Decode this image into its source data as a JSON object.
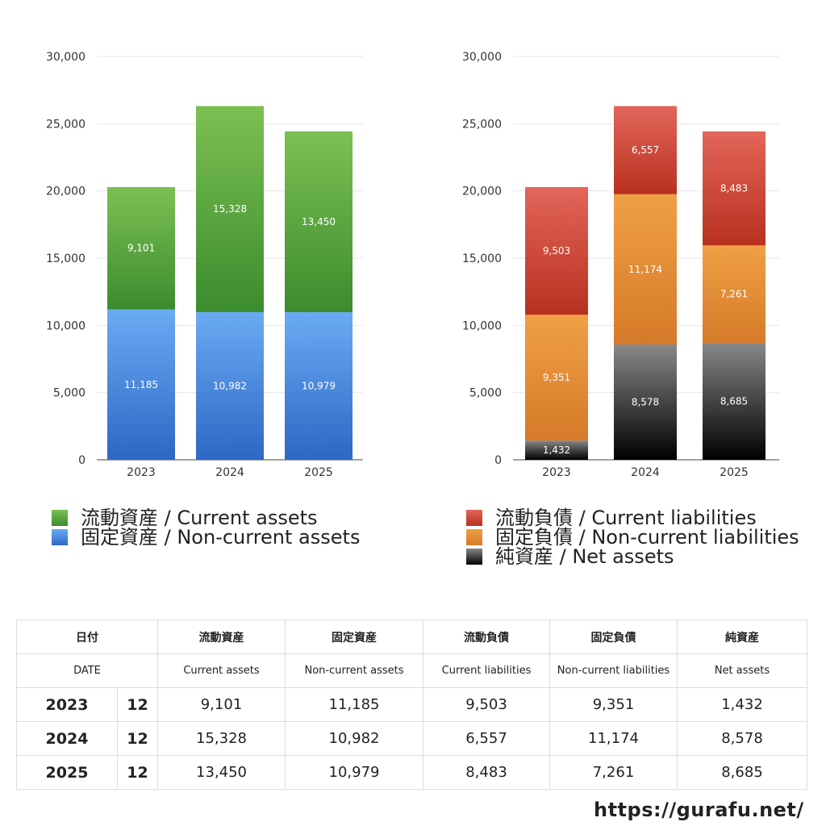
{
  "chart_data": [
    {
      "type": "bar",
      "stacked": true,
      "categories": [
        "2023",
        "2024",
        "2025"
      ],
      "ylim": [
        0,
        30000
      ],
      "yticks": [
        "0",
        "5,000",
        "10,000",
        "15,000",
        "20,000",
        "25,000",
        "30,000"
      ],
      "grid": true,
      "series": [
        {
          "name": "固定資産 / Non-current assets",
          "values": [
            11185,
            10982,
            10979
          ],
          "labels": [
            "11,185",
            "10,982",
            "10,979"
          ],
          "color_top": "#6aabf4",
          "color_bottom": "#2e67c4"
        },
        {
          "name": "流動資産 / Current assets",
          "values": [
            9101,
            15328,
            13450
          ],
          "labels": [
            "9,101",
            "15,328",
            "13,450"
          ],
          "color_top": "#7cc052",
          "color_bottom": "#3b8c2e"
        }
      ]
    },
    {
      "type": "bar",
      "stacked": true,
      "categories": [
        "2023",
        "2024",
        "2025"
      ],
      "ylim": [
        0,
        30000
      ],
      "yticks": [
        "0",
        "5,000",
        "10,000",
        "15,000",
        "20,000",
        "25,000",
        "30,000"
      ],
      "grid": true,
      "series": [
        {
          "name": "純資産 / Net assets",
          "values": [
            1432,
            8578,
            8685
          ],
          "labels": [
            "1,432",
            "8,578",
            "8,685"
          ],
          "color_top": "#888888",
          "color_bottom": "#000000"
        },
        {
          "name": "固定負債 / Non-current liabilities",
          "values": [
            9351,
            11174,
            7261
          ],
          "labels": [
            "9,351",
            "11,174",
            "7,261"
          ],
          "color_top": "#f0a045",
          "color_bottom": "#d57a29"
        },
        {
          "name": "流動負債 / Current liabilities",
          "values": [
            9503,
            6557,
            8483
          ],
          "labels": [
            "9,503",
            "6,557",
            "8,483"
          ],
          "color_top": "#e2665a",
          "color_bottom": "#b9301f"
        }
      ]
    }
  ],
  "legend_left": [
    "流動資産 / Current assets",
    "固定資産 / Non-current assets"
  ],
  "legend_right": [
    "流動負債 / Current liabilities",
    "固定負債 / Non-current liabilities",
    "純資産 / Net assets"
  ],
  "table": {
    "headers_jp": [
      "日付",
      "流動資産",
      "固定資産",
      "流動負債",
      "固定負債",
      "純資産"
    ],
    "headers_en": [
      "DATE",
      "Current assets",
      "Non-current assets",
      "Current liabilities",
      "Non-current liabilities",
      "Net assets"
    ],
    "rows": [
      {
        "year": "2023",
        "month": "12",
        "values": [
          "9,101",
          "11,185",
          "9,503",
          "9,351",
          "1,432"
        ]
      },
      {
        "year": "2024",
        "month": "12",
        "values": [
          "15,328",
          "10,982",
          "6,557",
          "11,174",
          "8,578"
        ]
      },
      {
        "year": "2025",
        "month": "12",
        "values": [
          "13,450",
          "10,979",
          "8,483",
          "7,261",
          "8,685"
        ]
      }
    ]
  },
  "site": "https://gurafu.net/"
}
